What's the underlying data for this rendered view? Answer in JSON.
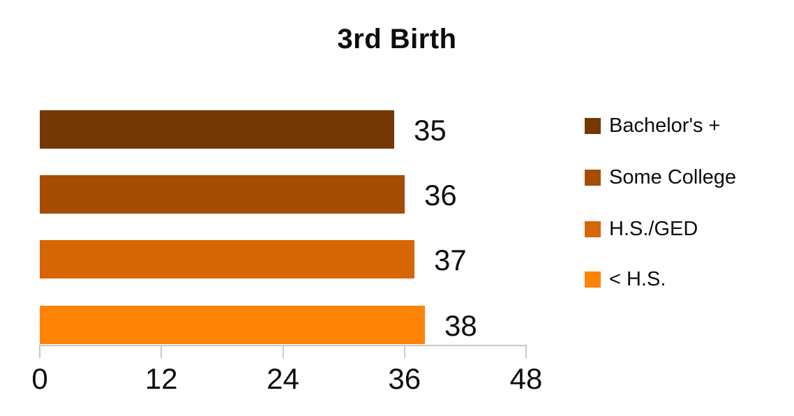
{
  "chart_data": {
    "type": "bar",
    "orientation": "horizontal",
    "title": "3rd Birth",
    "categories": [
      "Bachelor's +",
      "Some College",
      "H.S./GED",
      "< H.S."
    ],
    "values": [
      35,
      36,
      37,
      38
    ],
    "data_labels": [
      "35",
      "36",
      "37",
      "38"
    ],
    "bar_colors": [
      "#733806",
      "#A54C05",
      "#D66504",
      "#FF8305"
    ],
    "xlim": [
      0,
      48
    ],
    "x_ticks": [
      0,
      12,
      24,
      36,
      48
    ],
    "x_tick_labels": [
      "0",
      "12",
      "24",
      "36",
      "48"
    ],
    "ylabel": "",
    "xlabel": "",
    "grid": false,
    "legend_position": "right",
    "legend_entries": [
      {
        "label": "Bachelor's +",
        "color": "#733806"
      },
      {
        "label": "Some College",
        "color": "#A54C05"
      },
      {
        "label": "H.S./GED",
        "color": "#D66504"
      },
      {
        "label": "< H.S.",
        "color": "#FF8305"
      }
    ],
    "colors": {
      "axis_line": "#c8c8c8",
      "text": "#0d0d0d",
      "background": "#ffffff"
    }
  }
}
